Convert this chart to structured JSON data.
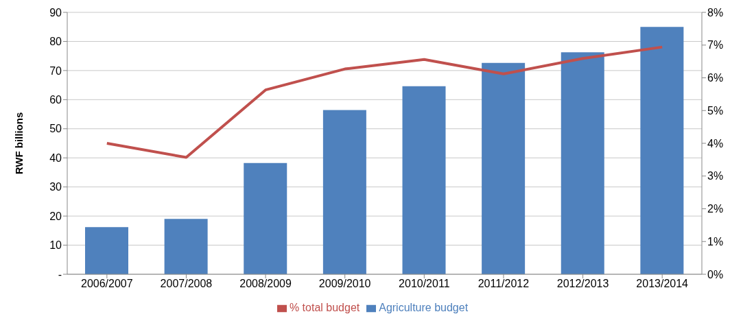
{
  "chart_data": {
    "type": "bar",
    "ylabel": "RWF billions",
    "categories": [
      "2006/2007",
      "2007/2008",
      "2008/2009",
      "2009/2010",
      "2010/2011",
      "2011/2012",
      "2012/2013",
      "2013/2014"
    ],
    "series": [
      {
        "name": "Agriculture budget",
        "color": "#4f81bd",
        "values": [
          16.2,
          19,
          38.2,
          56.4,
          64.6,
          72.6,
          76.3,
          85
        ]
      },
      {
        "name": "% total budget",
        "type": "line",
        "axis": "y2",
        "color": "#c0504d",
        "values": [
          4.0,
          3.57,
          5.63,
          6.27,
          6.56,
          6.12,
          6.59,
          6.94
        ]
      }
    ],
    "ylim": [
      0,
      90
    ],
    "yticks": [
      {
        "value": 0,
        "label": "-"
      },
      10,
      20,
      30,
      40,
      50,
      60,
      70,
      80,
      90
    ],
    "y2lim": [
      0,
      8
    ],
    "y2ticks": [
      {
        "value": 0,
        "label": "0%"
      },
      {
        "value": 1,
        "label": "1%"
      },
      {
        "value": 2,
        "label": "2%"
      },
      {
        "value": 3,
        "label": "3%"
      },
      {
        "value": 4,
        "label": "4%"
      },
      {
        "value": 5,
        "label": "5%"
      },
      {
        "value": 6,
        "label": "6%"
      },
      {
        "value": 7,
        "label": "7%"
      },
      {
        "value": 8,
        "label": "8%"
      }
    ],
    "grid": "y",
    "legend": "bottom",
    "marker": "none"
  }
}
